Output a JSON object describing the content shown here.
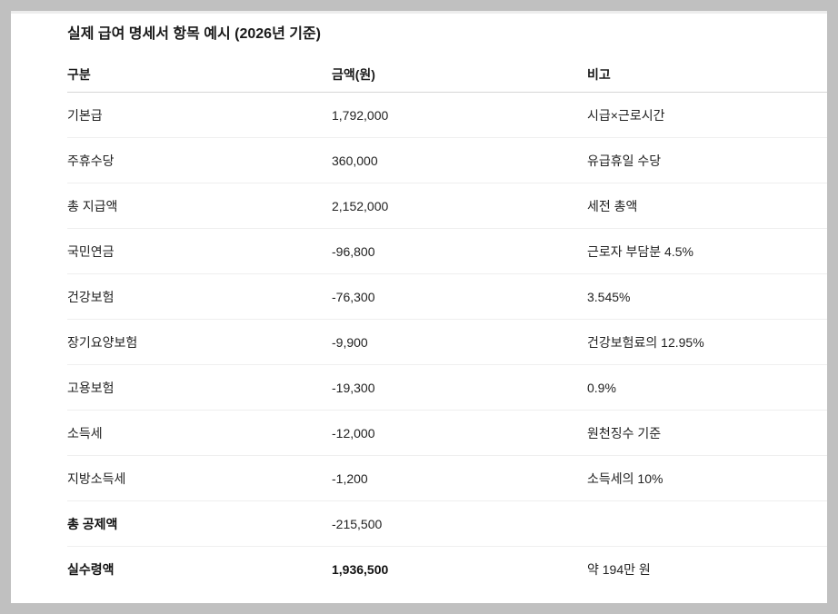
{
  "title": "실제 급여 명세서 항목 예시 (2026년 기준)",
  "table": {
    "headers": [
      "구분",
      "금액(원)",
      "비고"
    ],
    "rows": [
      {
        "item": "기본급",
        "amount": "1,792,000",
        "note": "시급×근로시간",
        "bold_item": false,
        "bold_amount": false
      },
      {
        "item": "주휴수당",
        "amount": "360,000",
        "note": "유급휴일 수당",
        "bold_item": false,
        "bold_amount": false
      },
      {
        "item": "총 지급액",
        "amount": "2,152,000",
        "note": "세전 총액",
        "bold_item": false,
        "bold_amount": false
      },
      {
        "item": "국민연금",
        "amount": "-96,800",
        "note": "근로자 부담분 4.5%",
        "bold_item": false,
        "bold_amount": false
      },
      {
        "item": "건강보험",
        "amount": "-76,300",
        "note": "3.545%",
        "bold_item": false,
        "bold_amount": false
      },
      {
        "item": "장기요양보험",
        "amount": "-9,900",
        "note": "건강보험료의 12.95%",
        "bold_item": false,
        "bold_amount": false
      },
      {
        "item": "고용보험",
        "amount": "-19,300",
        "note": "0.9%",
        "bold_item": false,
        "bold_amount": false
      },
      {
        "item": "소득세",
        "amount": "-12,000",
        "note": "원천징수 기준",
        "bold_item": false,
        "bold_amount": false
      },
      {
        "item": "지방소득세",
        "amount": "-1,200",
        "note": "소득세의 10%",
        "bold_item": false,
        "bold_amount": false
      },
      {
        "item": "총 공제액",
        "amount": "-215,500",
        "note": "",
        "bold_item": true,
        "bold_amount": false
      },
      {
        "item": "실수령액",
        "amount": "1,936,500",
        "note": "약 194만 원",
        "bold_item": true,
        "bold_amount": true
      }
    ]
  },
  "colors": {
    "background": "#c0c0c0",
    "panel": "#ffffff",
    "text": "#222222",
    "header_rule": "#d6d6d6",
    "row_rule": "#efefef"
  }
}
